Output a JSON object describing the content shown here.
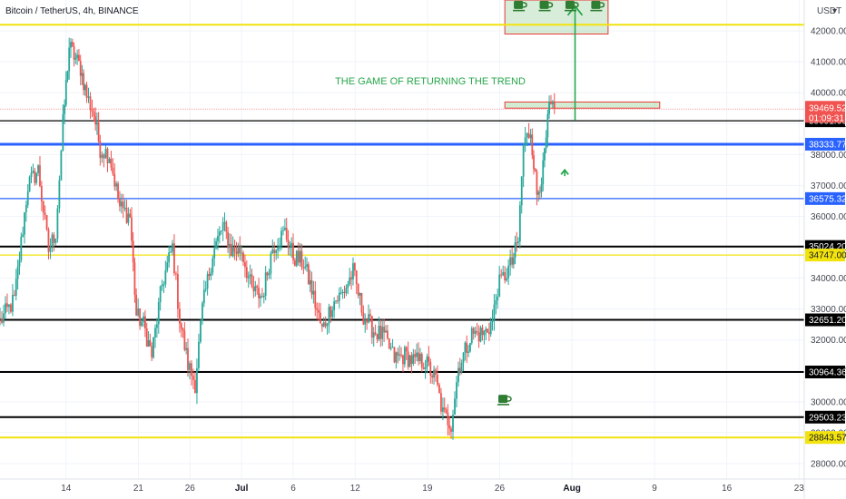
{
  "chart_title": "Bitcoin / TetherUS, 4h, BINANCE",
  "currency": "USDT",
  "currency_suffix": "▾",
  "annotation": "THE GAME OF RETURNING THE TREND",
  "icon_name": "coffee-cup-icon",
  "colors": {
    "up": "#26a69a",
    "down": "#ef5350",
    "black_line": "#000000",
    "blue_line": "#2962ff",
    "yellow_line": "#f2e30c",
    "green": "#26a64a",
    "price_label": "#f05350"
  },
  "chart_data": {
    "type": "candlestick",
    "symbol": "Bitcoin / TetherUS",
    "timeframe": "4h",
    "exchange": "BINANCE",
    "ylim": [
      27500,
      43000
    ],
    "y_ticks": [
      28000,
      29000,
      30000,
      31000,
      32000,
      33000,
      34000,
      35000,
      36000,
      37000,
      38000,
      39000,
      40000,
      41000,
      42000
    ],
    "x_ticks": [
      {
        "label": "14",
        "day": 14
      },
      {
        "label": "21",
        "day": 21
      },
      {
        "label": "26",
        "day": 26
      },
      {
        "label": "Jul",
        "day": 31
      },
      {
        "label": "6",
        "day": 36
      },
      {
        "label": "12",
        "day": 42
      },
      {
        "label": "19",
        "day": 49
      },
      {
        "label": "26",
        "day": 56
      },
      {
        "label": "Aug",
        "day": 63
      },
      {
        "label": "9",
        "day": 71
      },
      {
        "label": "16",
        "day": 78
      },
      {
        "label": "23",
        "day": 85
      }
    ],
    "x_range_days": [
      7.6,
      85.5
    ],
    "last_candle_day": 61.3,
    "current_price": 39469.52,
    "countdown": "01:09:31",
    "horizontal_levels": [
      {
        "price": 42200,
        "color": "yellow",
        "label": "",
        "thick": true
      },
      {
        "price": 39091.66,
        "color": "black",
        "label": "39091.66"
      },
      {
        "price": 38333.77,
        "color": "blue",
        "label": "38333.77",
        "thick": true
      },
      {
        "price": 36575.32,
        "color": "blue",
        "label": "36575.32"
      },
      {
        "price": 35024.2,
        "color": "black",
        "label": "35024.20",
        "thick": true
      },
      {
        "price": 34747.0,
        "color": "yellow",
        "label": "34747.00"
      },
      {
        "price": 32651.2,
        "color": "black",
        "label": "32651.20",
        "thick": true
      },
      {
        "price": 30964.36,
        "color": "black",
        "label": "30964.36",
        "thick": true
      },
      {
        "price": 29503.23,
        "color": "black",
        "label": "29503.23",
        "thick": true
      },
      {
        "price": 28843.57,
        "color": "yellow",
        "label": "28843.57",
        "thick": true
      }
    ],
    "zones": [
      {
        "name": "target-zone",
        "day_from": 56.5,
        "day_to": 66.5,
        "price_from": 41900,
        "price_to": 43000
      },
      {
        "name": "resistance-zone",
        "day_from": 56.5,
        "day_to": 71.5,
        "price_from": 39500,
        "price_to": 39700
      }
    ],
    "arrows": [
      {
        "name": "long-arrow",
        "day": 63.3,
        "from": 39100,
        "to": 42800
      },
      {
        "name": "small-arrow",
        "day": 62.3,
        "from": 37300,
        "to": 37500
      }
    ],
    "icon_positions": [
      {
        "day": 57.9,
        "price": 42800
      },
      {
        "day": 60.4,
        "price": 42800
      },
      {
        "day": 62.9,
        "price": 42800
      },
      {
        "day": 65.4,
        "price": 42800
      },
      {
        "day": 56.4,
        "price": 30050
      }
    ],
    "path_anchors": [
      [
        7.6,
        32600
      ],
      [
        9.0,
        33300
      ],
      [
        10.3,
        37000
      ],
      [
        11.3,
        37500
      ],
      [
        12.3,
        34900
      ],
      [
        13.0,
        35500
      ],
      [
        13.7,
        39000
      ],
      [
        14.3,
        41500
      ],
      [
        15.4,
        40800
      ],
      [
        16.0,
        39900
      ],
      [
        16.7,
        39300
      ],
      [
        17.3,
        38200
      ],
      [
        18.2,
        38000
      ],
      [
        19.2,
        36300
      ],
      [
        20.2,
        36000
      ],
      [
        20.8,
        32800
      ],
      [
        21.5,
        32500
      ],
      [
        22.3,
        31500
      ],
      [
        23.3,
        33800
      ],
      [
        24.3,
        35000
      ],
      [
        25.0,
        32700
      ],
      [
        25.8,
        31200
      ],
      [
        26.5,
        30600
      ],
      [
        27.2,
        33000
      ],
      [
        28.2,
        34800
      ],
      [
        29.2,
        35700
      ],
      [
        30.0,
        34900
      ],
      [
        31.0,
        34900
      ],
      [
        32.0,
        33600
      ],
      [
        33.0,
        33400
      ],
      [
        34.0,
        35000
      ],
      [
        35.2,
        35500
      ],
      [
        36.0,
        34700
      ],
      [
        37.0,
        34500
      ],
      [
        37.8,
        33600
      ],
      [
        38.8,
        32300
      ],
      [
        39.8,
        33200
      ],
      [
        40.8,
        33500
      ],
      [
        41.8,
        34200
      ],
      [
        42.8,
        32800
      ],
      [
        43.8,
        32300
      ],
      [
        44.8,
        32100
      ],
      [
        45.8,
        31400
      ],
      [
        46.8,
        31500
      ],
      [
        47.8,
        31300
      ],
      [
        48.8,
        31300
      ],
      [
        49.8,
        30700
      ],
      [
        50.5,
        29600
      ],
      [
        51.3,
        29300
      ],
      [
        52.0,
        31100
      ],
      [
        53.3,
        32200
      ],
      [
        54.5,
        32200
      ],
      [
        55.3,
        32600
      ],
      [
        55.8,
        33700
      ],
      [
        56.5,
        34100
      ],
      [
        57.2,
        34500
      ],
      [
        57.8,
        35200
      ],
      [
        58.3,
        38300
      ],
      [
        59.0,
        38800
      ],
      [
        59.6,
        36700
      ],
      [
        60.2,
        37500
      ],
      [
        60.8,
        39500
      ],
      [
        61.3,
        39470
      ]
    ]
  }
}
